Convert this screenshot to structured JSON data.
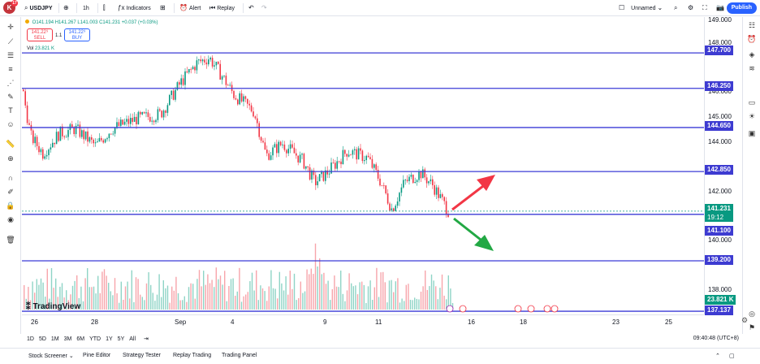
{
  "app": {
    "logo_letter": "K",
    "logo_badge": "17"
  },
  "toolbar": {
    "symbol": "USDJPY",
    "interval": "1h",
    "indicators_label": "Indicators",
    "alert_label": "Alert",
    "replay_label": "Replay",
    "layout_name": "Unnamed",
    "publish_label": "Publish"
  },
  "legend": {
    "ohlc": "O141.194 H141.267 L141.003 C141.231 +0.037 (+0.03%)",
    "sell_price": "141.22⁹",
    "sell_label": "SELL",
    "buy_price": "141.22⁹",
    "buy_label": "BUY",
    "spread": "1.1",
    "vol_label": "Vol",
    "vol_value": "23.821 K"
  },
  "price_axis": {
    "ticks": [
      "149.000",
      "148.000",
      "146.000",
      "145.000",
      "144.000",
      "142.000",
      "140.000",
      "138.000"
    ],
    "levels": [
      {
        "label": "147.700",
        "price": 147.7
      },
      {
        "label": "146.250",
        "price": 146.25
      },
      {
        "label": "144.650",
        "price": 144.65
      },
      {
        "label": "142.850",
        "price": 142.85
      },
      {
        "label": "141.100",
        "price": 141.1
      },
      {
        "label": "139.200",
        "price": 139.2
      },
      {
        "label": "137.137",
        "price": 137.137
      }
    ],
    "current_price": "141.231",
    "countdown": "19:12",
    "volume_label": "23.821 K"
  },
  "time_axis": {
    "ticks": [
      "26",
      "28",
      "Sep",
      "4",
      "9",
      "11",
      "16",
      "18",
      "23",
      "25"
    ]
  },
  "watermark": "TradingView",
  "range_bar": {
    "ranges": [
      "1D",
      "5D",
      "1M",
      "3M",
      "6M",
      "YTD",
      "1Y",
      "5Y",
      "All"
    ],
    "clock": "09:40:48 (UTC+8)"
  },
  "bottom_tabs": [
    "Stock Screener",
    "Pine Editor",
    "Strategy Tester",
    "Replay Trading",
    "Trading Panel"
  ],
  "colors": {
    "level_line": "#3b3bd6",
    "level_label": "#3d3bd1",
    "current_price": "#089981",
    "up_candle": "#089981",
    "down_candle": "#f23645",
    "arrow_up": "#f23645",
    "arrow_down": "#22a844",
    "accent": "#2962ff"
  }
}
